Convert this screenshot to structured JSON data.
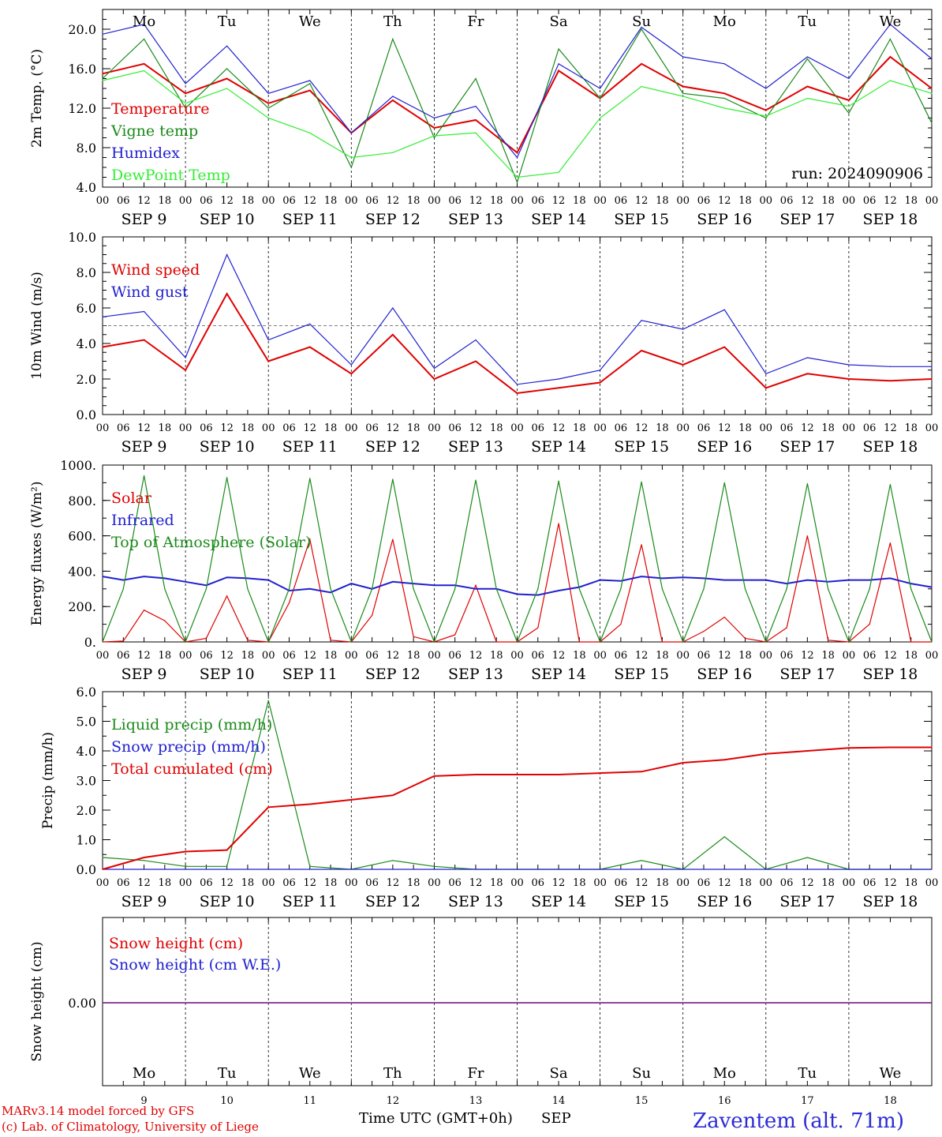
{
  "chart_data": [
    {
      "type": "line",
      "ylabel": "2m Temp. (°C)",
      "ylim": [
        4,
        22
      ],
      "yticks": [
        "4.0",
        "8.0",
        "12.0",
        "16.0",
        "20.0"
      ],
      "x": [
        "09-00",
        "09-12",
        "10-00",
        "10-12",
        "11-00",
        "11-12",
        "12-00",
        "12-12",
        "13-00",
        "13-12",
        "14-00",
        "14-12",
        "15-00",
        "15-12",
        "16-00",
        "16-12",
        "17-00",
        "17-12",
        "18-00",
        "18-12",
        "19-00"
      ],
      "series": [
        {
          "name": "Temperature",
          "color": "#e00000",
          "values": [
            15.5,
            16.5,
            13.5,
            15.0,
            12.5,
            13.8,
            9.5,
            12.8,
            10.0,
            10.8,
            7.5,
            15.8,
            13.0,
            16.5,
            14.2,
            13.5,
            11.8,
            14.2,
            12.8,
            17.2,
            14.0
          ]
        },
        {
          "name": "Vigne temp",
          "color": "#1a8a1a",
          "values": [
            15.0,
            19.0,
            12.0,
            16.0,
            12.0,
            14.5,
            6.0,
            19.0,
            9.0,
            15.0,
            4.5,
            18.0,
            13.0,
            20.0,
            13.5,
            13.0,
            11.0,
            17.0,
            11.5,
            19.0,
            10.5
          ]
        },
        {
          "name": "Humidex",
          "color": "#2020d0",
          "values": [
            19.5,
            20.5,
            14.5,
            18.3,
            13.5,
            14.8,
            9.5,
            13.2,
            11.0,
            12.2,
            7.0,
            16.5,
            14.0,
            20.2,
            17.2,
            16.5,
            14.0,
            17.2,
            15.0,
            20.5,
            17.0
          ]
        },
        {
          "name": "DewPoint Temp",
          "color": "#33ee33",
          "values": [
            14.8,
            15.8,
            12.5,
            14.0,
            11.0,
            9.5,
            7.0,
            7.5,
            9.2,
            9.5,
            5.0,
            5.5,
            11.0,
            14.2,
            13.2,
            12.0,
            11.2,
            13.0,
            12.2,
            14.8,
            13.5
          ]
        }
      ],
      "annotation": "run: 2024090906",
      "day_names": [
        "Mo",
        "Tu",
        "We",
        "Th",
        "Fr",
        "Sa",
        "Su",
        "Mo",
        "Tu",
        "We"
      ]
    },
    {
      "type": "line",
      "ylabel": "10m Wind (m/s)",
      "ylim": [
        0,
        10
      ],
      "yticks": [
        "0.0",
        "2.0",
        "4.0",
        "6.0",
        "8.0",
        "10.0"
      ],
      "x": [
        "09-00",
        "09-12",
        "10-00",
        "10-12",
        "11-00",
        "11-12",
        "12-00",
        "12-12",
        "13-00",
        "13-12",
        "14-00",
        "14-12",
        "15-00",
        "15-12",
        "16-00",
        "16-12",
        "17-00",
        "17-12",
        "18-00",
        "18-12",
        "19-00"
      ],
      "series": [
        {
          "name": "Wind speed",
          "color": "#e00000",
          "values": [
            3.8,
            4.2,
            2.5,
            6.8,
            3.0,
            3.8,
            2.3,
            4.5,
            2.0,
            3.0,
            1.2,
            1.5,
            1.8,
            3.6,
            2.8,
            3.8,
            1.5,
            2.3,
            2.0,
            1.9,
            2.0
          ]
        },
        {
          "name": "Wind gust",
          "color": "#2020d0",
          "values": [
            5.5,
            5.8,
            3.2,
            9.0,
            4.2,
            5.1,
            2.8,
            6.0,
            2.6,
            4.2,
            1.7,
            2.0,
            2.5,
            5.3,
            4.8,
            5.9,
            2.3,
            3.2,
            2.8,
            2.7,
            2.7
          ]
        }
      ],
      "reference_line": 5.0
    },
    {
      "type": "line",
      "ylabel": "Energy fluxes (W/m²)",
      "ylim": [
        0,
        1000
      ],
      "yticks": [
        "0.",
        "200.",
        "400.",
        "600.",
        "800.",
        "1000."
      ],
      "x": [
        "09-00",
        "09-06",
        "09-12",
        "09-18",
        "10-00",
        "10-06",
        "10-12",
        "10-18",
        "11-00",
        "11-06",
        "11-12",
        "11-18",
        "12-00",
        "12-06",
        "12-12",
        "12-18",
        "13-00",
        "13-06",
        "13-12",
        "13-18",
        "14-00",
        "14-06",
        "14-12",
        "14-18",
        "15-00",
        "15-06",
        "15-12",
        "15-18",
        "16-00",
        "16-06",
        "16-12",
        "16-18",
        "17-00",
        "17-06",
        "17-12",
        "17-18",
        "18-00",
        "18-06",
        "18-12",
        "18-18",
        "19-00"
      ],
      "series": [
        {
          "name": "Solar",
          "color": "#e00000",
          "values": [
            0,
            5,
            180,
            120,
            0,
            20,
            260,
            10,
            0,
            220,
            580,
            10,
            0,
            150,
            580,
            30,
            0,
            40,
            320,
            0,
            0,
            80,
            670,
            0,
            0,
            100,
            550,
            0,
            0,
            60,
            140,
            20,
            0,
            80,
            600,
            10,
            0,
            100,
            560,
            0,
            0
          ]
        },
        {
          "name": "Infrared",
          "color": "#2020d0",
          "values": [
            370,
            350,
            370,
            360,
            340,
            320,
            365,
            360,
            350,
            290,
            300,
            280,
            330,
            300,
            340,
            330,
            320,
            320,
            300,
            300,
            270,
            265,
            290,
            310,
            350,
            345,
            370,
            360,
            365,
            360,
            350,
            350,
            350,
            330,
            350,
            340,
            350,
            350,
            360,
            330,
            310
          ]
        },
        {
          "name": "Top of Atmosphere (Solar)",
          "color": "#1a8a1a",
          "values": [
            0,
            300,
            940,
            300,
            0,
            300,
            930,
            300,
            0,
            300,
            925,
            300,
            0,
            300,
            920,
            300,
            0,
            300,
            915,
            300,
            0,
            300,
            910,
            300,
            0,
            300,
            905,
            300,
            0,
            300,
            900,
            300,
            0,
            300,
            895,
            300,
            0,
            300,
            890,
            300,
            0
          ]
        }
      ]
    },
    {
      "type": "line",
      "ylabel": "Precip (mm/h)",
      "ylim": [
        0,
        6
      ],
      "yticks": [
        "0.0",
        "1.0",
        "2.0",
        "3.0",
        "4.0",
        "5.0",
        "6.0"
      ],
      "x": [
        "09-00",
        "09-12",
        "10-00",
        "10-12",
        "11-00",
        "11-12",
        "12-00",
        "12-12",
        "13-00",
        "13-12",
        "14-00",
        "14-12",
        "15-00",
        "15-12",
        "16-00",
        "16-12",
        "17-00",
        "17-12",
        "18-00",
        "18-12",
        "19-00"
      ],
      "series": [
        {
          "name": "Liquid precip (mm/h)",
          "color": "#1a8a1a",
          "values": [
            0.4,
            0.3,
            0.1,
            0.1,
            5.7,
            0.1,
            0.0,
            0.3,
            0.1,
            0.0,
            0.0,
            0.0,
            0.0,
            0.3,
            0.0,
            1.1,
            0.0,
            0.4,
            0.0,
            0.0,
            0.0
          ]
        },
        {
          "name": "Snow precip (mm/h)",
          "color": "#2020d0",
          "values": [
            0,
            0,
            0,
            0,
            0,
            0,
            0,
            0,
            0,
            0,
            0,
            0,
            0,
            0,
            0,
            0,
            0,
            0,
            0,
            0,
            0
          ]
        },
        {
          "name": "Total cumulated (cm)",
          "color": "#e00000",
          "values": [
            0.0,
            0.4,
            0.6,
            0.65,
            2.1,
            2.2,
            2.35,
            2.5,
            3.15,
            3.2,
            3.2,
            3.2,
            3.25,
            3.3,
            3.6,
            3.7,
            3.9,
            4.0,
            4.1,
            4.12,
            4.12
          ]
        }
      ]
    },
    {
      "type": "line",
      "ylabel": "Snow height (cm)",
      "ylim": [
        -1,
        1
      ],
      "yticks": [
        "0.00"
      ],
      "x": [
        "09-00",
        "19-00"
      ],
      "series": [
        {
          "name": "Snow height (cm)",
          "color": "#e00000",
          "values": [
            0,
            0
          ]
        },
        {
          "name": "Snow height (cm W.E.)",
          "color": "#2020d0",
          "values": [
            0,
            0
          ]
        }
      ],
      "day_names": [
        "Mo",
        "Tu",
        "We",
        "Th",
        "Fr",
        "Sa",
        "Su",
        "Mo",
        "Tu",
        "We"
      ],
      "day_numbers": [
        "9",
        "10",
        "11",
        "12",
        "13",
        "14",
        "15",
        "16",
        "17",
        "18"
      ]
    }
  ],
  "axis": {
    "hour_ticks": [
      "00",
      "06",
      "12",
      "18"
    ],
    "final_tick": "00",
    "dates": [
      "SEP  9",
      "SEP 10",
      "SEP 11",
      "SEP 12",
      "SEP 13",
      "SEP 14",
      "SEP 15",
      "SEP 16",
      "SEP 17",
      "SEP 18"
    ],
    "xlabel": "Time UTC (GMT+0h)",
    "month": "SEP",
    "weekend_color": "#e00000"
  },
  "footer": {
    "line1": "MARv3.14 model forced by GFS",
    "line2": "(c) Lab. of Climatology, University of Liege",
    "title": "Zaventem (alt. 71m)"
  }
}
